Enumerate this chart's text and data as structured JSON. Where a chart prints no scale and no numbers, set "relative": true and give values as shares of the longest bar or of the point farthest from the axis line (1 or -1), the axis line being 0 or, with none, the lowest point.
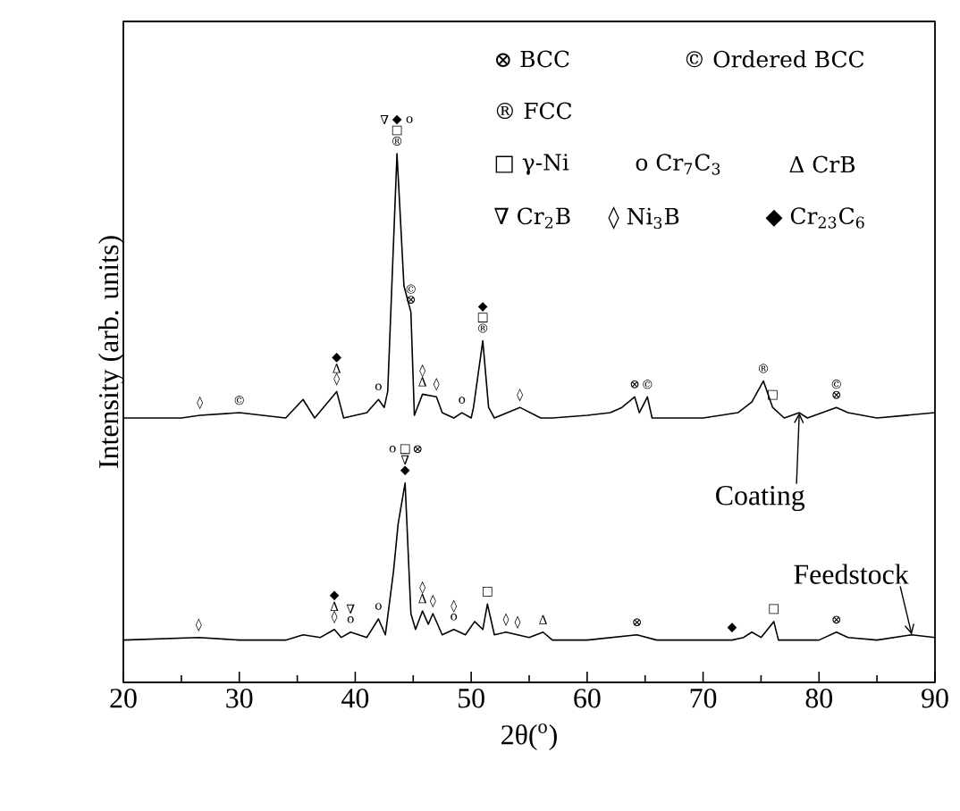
{
  "chart_data": {
    "type": "line",
    "relative": true,
    "xlabel": "2θ($^{o}$)",
    "ylabel": "Intensity (arb. units)",
    "xlim": [
      20,
      90
    ],
    "xticks": [
      20,
      30,
      40,
      50,
      60,
      70,
      80,
      90
    ],
    "tick_labels": "x",
    "series": [
      {
        "name": "Coating",
        "color": "#000000",
        "x": [
          20,
          25,
          26.6,
          30,
          34,
          35.5,
          36.5,
          38.4,
          39,
          41,
          42,
          42.5,
          42.8,
          43.6,
          44.2,
          44.8,
          45.1,
          45.8,
          47.0,
          47.5,
          48.5,
          49.2,
          50,
          50.2,
          51.0,
          51.5,
          52,
          54.2,
          56,
          57,
          60,
          62,
          63,
          64.1,
          64.5,
          65.2,
          65.6,
          70,
          73,
          74.2,
          75.2,
          76,
          77,
          78.3,
          79,
          81.5,
          82.5,
          85,
          90
        ],
        "values": [
          0.5,
          0.5,
          0.505,
          0.51,
          0.5,
          0.535,
          0.5,
          0.55,
          0.5,
          0.51,
          0.535,
          0.52,
          0.55,
          1.0,
          0.75,
          0.7,
          0.505,
          0.545,
          0.54,
          0.51,
          0.5,
          0.51,
          0.5,
          0.52,
          0.646,
          0.52,
          0.5,
          0.52,
          0.5,
          0.5,
          0.505,
          0.51,
          0.52,
          0.54,
          0.51,
          0.54,
          0.5,
          0.5,
          0.51,
          0.53,
          0.57,
          0.52,
          0.5,
          0.51,
          0.5,
          0.52,
          0.51,
          0.5,
          0.51
        ]
      },
      {
        "name": "Feedstock",
        "color": "#000000",
        "x": [
          20,
          26.5,
          30,
          34,
          35.5,
          37,
          38.2,
          38.8,
          39.6,
          41,
          42,
          42.6,
          43.3,
          43.7,
          44.3,
          44.8,
          45.2,
          45.8,
          46.3,
          46.7,
          47.5,
          48.5,
          49.5,
          50.3,
          51,
          51.4,
          52,
          53,
          54,
          55,
          56.2,
          57,
          60,
          64.3,
          66,
          70,
          72.5,
          73.5,
          74.2,
          75,
          76.1,
          76.5,
          80,
          81.5,
          82.5,
          85,
          88,
          90
        ],
        "values": [
          0.08,
          0.085,
          0.08,
          0.08,
          0.09,
          0.085,
          0.1,
          0.085,
          0.095,
          0.085,
          0.12,
          0.09,
          0.21,
          0.3,
          0.377,
          0.13,
          0.1,
          0.135,
          0.11,
          0.13,
          0.09,
          0.1,
          0.09,
          0.115,
          0.1,
          0.148,
          0.09,
          0.095,
          0.09,
          0.085,
          0.095,
          0.08,
          0.08,
          0.09,
          0.08,
          0.08,
          0.08,
          0.085,
          0.095,
          0.085,
          0.115,
          0.08,
          0.08,
          0.095,
          0.085,
          0.08,
          0.09,
          0.085
        ]
      }
    ],
    "annotations": [
      "⊗ BCC",
      "© Ordered BCC",
      "® FCC",
      "□ γ-Ni",
      "o Cr$_{7}$C$_{3}$",
      "Δ CrB",
      "∇ Cr$_{2}$B",
      "◊ Ni$_{3}$B",
      "◆ Cr$_{23}$C$_{6}$",
      {
        "text": "®",
        "x": 43.6,
        "y": 1.0
      },
      {
        "text": "□",
        "x": 43.6,
        "y": 1.0
      },
      {
        "text": "◆",
        "x": 43.6,
        "y": 1.0
      },
      {
        "text": "∇",
        "x": 43.6,
        "y": 1.0
      },
      {
        "text": "o",
        "x": 43.6,
        "y": 1.0
      },
      {
        "text": "⊗",
        "x": 44.8,
        "y": 0.7
      },
      {
        "text": "©",
        "x": 44.8,
        "y": 0.7
      },
      {
        "text": "®",
        "x": 51.0,
        "y": 0.646
      },
      {
        "text": "□",
        "x": 51.0,
        "y": 0.646
      },
      {
        "text": "◆",
        "x": 51.0,
        "y": 0.646
      },
      {
        "text": "◊",
        "x": 38.4,
        "y": 0.55
      },
      {
        "text": "Δ",
        "x": 38.4,
        "y": 0.55
      },
      {
        "text": "◆",
        "x": 38.4,
        "y": 0.55
      },
      {
        "text": "◊",
        "x": 26.6,
        "y": 0.505
      },
      {
        "text": "©",
        "x": 30,
        "y": 0.51
      },
      {
        "text": "o",
        "x": 42,
        "y": 0.535
      },
      {
        "text": "Δ",
        "x": 45.8,
        "y": 0.545
      },
      {
        "text": "◊",
        "x": 45.8,
        "y": 0.545
      },
      {
        "text": "◊",
        "x": 47.0,
        "y": 0.54
      },
      {
        "text": "o",
        "x": 49.2,
        "y": 0.51
      },
      {
        "text": "◊",
        "x": 54.2,
        "y": 0.52
      },
      {
        "text": "⊗",
        "x": 64.1,
        "y": 0.54
      },
      {
        "text": "©",
        "x": 65.2,
        "y": 0.54
      },
      {
        "text": "®",
        "x": 75.2,
        "y": 0.57
      },
      {
        "text": "□",
        "x": 76,
        "y": 0.52
      },
      {
        "text": "⊗",
        "x": 81.5,
        "y": 0.52
      },
      {
        "text": "©",
        "x": 81.5,
        "y": 0.52
      },
      {
        "text": "◆",
        "x": 44.3,
        "y": 0.377
      },
      {
        "text": "∇",
        "x": 44.3,
        "y": 0.377
      },
      {
        "text": "□",
        "x": 44.3,
        "y": 0.377
      },
      {
        "text": "o",
        "x": 44.3,
        "y": 0.377
      },
      {
        "text": "⊗",
        "x": 44.3,
        "y": 0.377
      },
      {
        "text": "◊",
        "x": 26.5,
        "y": 0.085
      },
      {
        "text": "◊",
        "x": 38.2,
        "y": 0.1
      },
      {
        "text": "Δ",
        "x": 38.2,
        "y": 0.1
      },
      {
        "text": "◆",
        "x": 38.2,
        "y": 0.1
      },
      {
        "text": "o",
        "x": 39.6,
        "y": 0.095
      },
      {
        "text": "∇",
        "x": 39.6,
        "y": 0.095
      },
      {
        "text": "o",
        "x": 42,
        "y": 0.12
      },
      {
        "text": "Δ",
        "x": 45.8,
        "y": 0.135
      },
      {
        "text": "◊",
        "x": 45.8,
        "y": 0.135
      },
      {
        "text": "◊",
        "x": 46.7,
        "y": 0.13
      },
      {
        "text": "o",
        "x": 48.5,
        "y": 0.1
      },
      {
        "text": "◊",
        "x": 48.5,
        "y": 0.1
      },
      {
        "text": "□",
        "x": 51.4,
        "y": 0.148
      },
      {
        "text": "◊",
        "x": 53,
        "y": 0.095
      },
      {
        "text": "◊",
        "x": 54,
        "y": 0.09
      },
      {
        "text": "Δ",
        "x": 56.2,
        "y": 0.095
      },
      {
        "text": "⊗",
        "x": 64.3,
        "y": 0.09
      },
      {
        "text": "◆",
        "x": 72.5,
        "y": 0.08
      },
      {
        "text": "□",
        "x": 76.1,
        "y": 0.115
      },
      {
        "text": "⊗",
        "x": 81.5,
        "y": 0.095
      }
    ]
  }
}
